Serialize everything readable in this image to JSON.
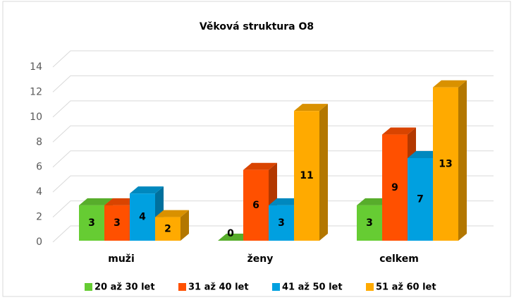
{
  "chart_data": {
    "type": "bar3d",
    "title": "Věková struktura O8",
    "categories": [
      "muži",
      "ženy",
      "celkem"
    ],
    "series": [
      {
        "name": "20 až 30 let",
        "color": "#66cc33",
        "values": [
          3,
          0,
          3
        ]
      },
      {
        "name": "31 až 40 let",
        "color": "#ff5000",
        "values": [
          3,
          6,
          9
        ]
      },
      {
        "name": "41 až 50 let",
        "color": "#00a0e0",
        "values": [
          4,
          3,
          7
        ]
      },
      {
        "name": "51 až 60 let",
        "color": "#ffaa00",
        "values": [
          2,
          11,
          13
        ]
      }
    ],
    "ylim": [
      0,
      14
    ],
    "yticks": [
      0,
      2,
      4,
      6,
      8,
      10,
      12,
      14
    ],
    "grid": true,
    "legend": "bottom"
  }
}
